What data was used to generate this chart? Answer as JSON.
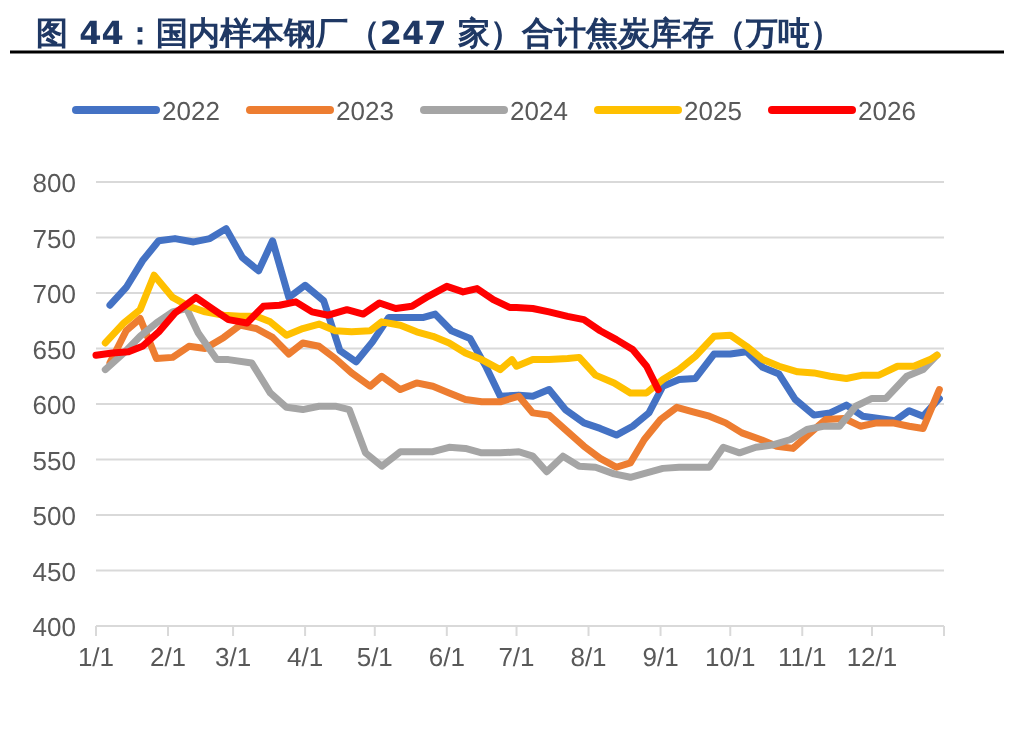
{
  "chart_data": {
    "type": "line",
    "title": "图 44：国内样本钢厂（247 家）合计焦炭库存（万吨）",
    "xlim": [
      "--01-01",
      "--12-31"
    ],
    "xticks": [
      {
        "value": "--01-01",
        "label": "1/1"
      },
      {
        "value": "--02-01",
        "label": "2/1"
      },
      {
        "value": "--03-01",
        "label": "3/1"
      },
      {
        "value": "--04-01",
        "label": "4/1"
      },
      {
        "value": "--05-01",
        "label": "5/1"
      },
      {
        "value": "--06-01",
        "label": "6/1"
      },
      {
        "value": "--07-01",
        "label": "7/1"
      },
      {
        "value": "--08-01",
        "label": "8/1"
      },
      {
        "value": "--09-01",
        "label": "9/1"
      },
      {
        "value": "--10-01",
        "label": "10/1"
      },
      {
        "value": "--11-01",
        "label": "11/1"
      },
      {
        "value": "--12-01",
        "label": "12/1"
      }
    ],
    "ylim": [
      400,
      800
    ],
    "yticks": [
      400,
      450,
      500,
      550,
      600,
      650,
      700,
      750,
      800
    ],
    "grid": "y",
    "legend": "top",
    "line_style": "solid",
    "marker": "none",
    "series": [
      {
        "name": "2022",
        "color": "#4472c4",
        "x": [
          "--01-07",
          "--01-14",
          "--01-21",
          "--01-28",
          "--02-04",
          "--02-12",
          "--02-19",
          "--02-26",
          "--03-05",
          "--03-12",
          "--03-18",
          "--03-25",
          "--04-01",
          "--04-09",
          "--04-16",
          "--04-23",
          "--04-30",
          "--05-07",
          "--05-14",
          "--05-22",
          "--05-27",
          "--06-03",
          "--06-11",
          "--06-18",
          "--06-24",
          "--07-02",
          "--07-08",
          "--07-15",
          "--07-22",
          "--07-30",
          "--08-06",
          "--08-13",
          "--08-20",
          "--08-27",
          "--09-02",
          "--09-09",
          "--09-16",
          "--09-24",
          "--10-01",
          "--10-08",
          "--10-15",
          "--10-22",
          "--10-29",
          "--11-06",
          "--11-13",
          "--11-20",
          "--11-27",
          "--12-04",
          "--12-11",
          "--12-17",
          "--12-23",
          "--12-30"
        ],
        "values": [
          689,
          705,
          729,
          747,
          749,
          746,
          749,
          758,
          732,
          720,
          747,
          696,
          707,
          693,
          648,
          638,
          656,
          678,
          678,
          678,
          681,
          666,
          659,
          633,
          607,
          608,
          607,
          613,
          595,
          583,
          578,
          572,
          580,
          592,
          616,
          622,
          623,
          645,
          645,
          647,
          633,
          627,
          604,
          590,
          592,
          599,
          589,
          587,
          585,
          594,
          589,
          605
        ]
      },
      {
        "name": "2023",
        "color": "#ed7d31",
        "x": [
          "--01-07",
          "--01-14",
          "--01-20",
          "--01-27",
          "--02-03",
          "--02-10",
          "--02-17",
          "--02-25",
          "--03-04",
          "--03-11",
          "--03-18",
          "--03-25",
          "--03-31",
          "--04-07",
          "--04-14",
          "--04-21",
          "--04-29",
          "--05-04",
          "--05-12",
          "--05-19",
          "--05-26",
          "--06-02",
          "--06-09",
          "--06-16",
          "--06-24",
          "--07-02",
          "--07-08",
          "--07-15",
          "--07-22",
          "--07-30",
          "--08-06",
          "--08-13",
          "--08-19",
          "--08-25",
          "--09-01",
          "--09-08",
          "--09-15",
          "--09-22",
          "--09-29",
          "--10-06",
          "--10-14",
          "--10-21",
          "--10-28",
          "--11-04",
          "--11-11",
          "--11-19",
          "--11-26",
          "--12-03",
          "--12-10",
          "--12-17",
          "--12-23",
          "--12-30"
        ],
        "values": [
          637,
          666,
          677,
          641,
          642,
          652,
          650,
          660,
          671,
          668,
          660,
          645,
          655,
          652,
          641,
          628,
          616,
          625,
          613,
          619,
          616,
          610,
          604,
          602,
          602,
          607,
          592,
          590,
          577,
          562,
          551,
          543,
          547,
          568,
          586,
          597,
          593,
          589,
          583,
          574,
          568,
          562,
          560,
          573,
          586,
          587,
          580,
          583,
          583,
          580,
          578,
          613
        ]
      },
      {
        "name": "2024",
        "color": "#a5a5a5",
        "x": [
          "--01-05",
          "--01-13",
          "--01-20",
          "--01-27",
          "--02-03",
          "--02-09",
          "--02-14",
          "--02-22",
          "--02-27",
          "--03-09",
          "--03-17",
          "--03-24",
          "--03-31",
          "--04-07",
          "--04-14",
          "--04-20",
          "--04-27",
          "--05-04",
          "--05-12",
          "--05-19",
          "--05-26",
          "--06-02",
          "--06-09",
          "--06-16",
          "--06-24",
          "--07-02",
          "--07-08",
          "--07-14",
          "--07-21",
          "--07-28",
          "--08-04",
          "--08-12",
          "--08-19",
          "--08-26",
          "--09-02",
          "--09-09",
          "--09-18",
          "--09-22",
          "--09-28",
          "--10-05",
          "--10-12",
          "--10-19",
          "--10-27",
          "--11-03",
          "--11-10",
          "--11-17",
          "--11-24",
          "--12-01",
          "--12-07",
          "--12-16",
          "--12-23",
          "--12-29"
        ],
        "values": [
          631,
          646,
          661,
          673,
          683,
          686,
          664,
          640,
          640,
          637,
          610,
          597,
          595,
          598,
          598,
          595,
          556,
          544,
          557,
          557,
          557,
          561,
          560,
          556,
          556,
          557,
          553,
          539,
          553,
          544,
          543,
          537,
          534,
          538,
          542,
          543,
          543,
          543,
          561,
          556,
          561,
          563,
          568,
          577,
          580,
          580,
          598,
          605,
          605,
          625,
          631,
          644
        ]
      },
      {
        "name": "2025",
        "color": "#ffc000",
        "x": [
          "--01-05",
          "--01-13",
          "--01-20",
          "--01-26",
          "--02-03",
          "--02-10",
          "--02-17",
          "--02-25",
          "--03-04",
          "--03-11",
          "--03-17",
          "--03-24",
          "--03-31",
          "--04-07",
          "--04-14",
          "--04-21",
          "--04-29",
          "--05-04",
          "--05-12",
          "--05-19",
          "--05-26",
          "--06-02",
          "--06-09",
          "--06-16",
          "--06-24",
          "--06-29",
          "--07-01",
          "--07-08",
          "--07-15",
          "--07-23",
          "--07-28",
          "--08-04",
          "--08-12",
          "--08-19",
          "--08-26",
          "--09-02",
          "--09-09",
          "--09-16",
          "--09-24",
          "--10-01",
          "--10-08",
          "--10-15",
          "--10-22",
          "--10-30",
          "--11-06",
          "--11-13",
          "--11-20",
          "--11-27",
          "--12-04",
          "--12-12",
          "--12-19",
          "--12-26",
          "--12-29"
        ],
        "values": [
          655,
          673,
          685,
          716,
          696,
          688,
          683,
          680,
          679,
          679,
          674,
          662,
          668,
          672,
          666,
          665,
          666,
          674,
          671,
          665,
          661,
          655,
          646,
          640,
          631,
          640,
          634,
          640,
          640,
          641,
          642,
          626,
          619,
          610,
          610,
          622,
          631,
          643,
          661,
          662,
          652,
          640,
          634,
          629,
          628,
          625,
          623,
          626,
          626,
          634,
          634,
          640,
          644
        ]
      },
      {
        "name": "2026",
        "color": "#ff0000",
        "x": [
          "--01-01",
          "--01-08",
          "--01-15",
          "--01-21",
          "--01-28",
          "--02-04",
          "--02-13",
          "--02-20",
          "--02-27",
          "--03-07",
          "--03-14",
          "--03-21",
          "--03-28",
          "--04-04",
          "--04-11",
          "--04-19",
          "--04-26",
          "--05-03",
          "--05-10",
          "--05-17",
          "--05-24",
          "--06-01",
          "--06-08",
          "--06-14",
          "--06-21",
          "--06-28",
          "--07-01",
          "--07-08",
          "--07-15",
          "--07-23",
          "--07-30",
          "--08-06",
          "--08-13",
          "--08-20",
          "--08-26",
          "--08-31"
        ],
        "values": [
          644,
          646,
          647,
          652,
          665,
          682,
          696,
          686,
          676,
          673,
          688,
          689,
          692,
          683,
          680,
          685,
          681,
          691,
          686,
          688,
          697,
          706,
          701,
          704,
          694,
          687,
          687,
          686,
          683,
          679,
          676,
          666,
          658,
          649,
          634,
          613
        ]
      }
    ]
  }
}
